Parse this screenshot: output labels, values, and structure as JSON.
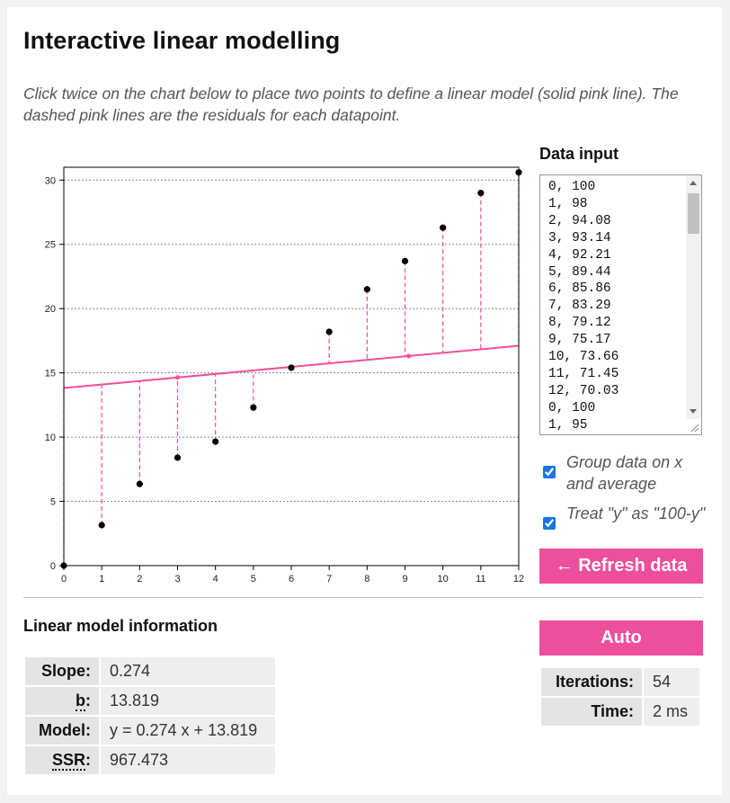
{
  "header": {
    "title": "Interactive linear modelling",
    "description": "Click twice on the chart below to place two points to define a linear model (solid pink line). The dashed pink lines are the residuals for each datapoint."
  },
  "chart_data": {
    "type": "scatter",
    "xlim": [
      0,
      12
    ],
    "ylim": [
      0,
      31
    ],
    "x_ticks": [
      0,
      1,
      2,
      3,
      4,
      5,
      6,
      7,
      8,
      9,
      10,
      11,
      12
    ],
    "y_ticks": [
      0,
      5,
      10,
      15,
      20,
      25,
      30
    ],
    "grid": "horizontal dashed",
    "points": [
      {
        "x": 0,
        "y": 0
      },
      {
        "x": 1,
        "y": 3.15
      },
      {
        "x": 2,
        "y": 6.35
      },
      {
        "x": 3,
        "y": 8.4
      },
      {
        "x": 4,
        "y": 9.65
      },
      {
        "x": 5,
        "y": 12.3
      },
      {
        "x": 6,
        "y": 15.4
      },
      {
        "x": 7,
        "y": 18.2
      },
      {
        "x": 8,
        "y": 21.5
      },
      {
        "x": 9,
        "y": 23.7
      },
      {
        "x": 10,
        "y": 26.3
      },
      {
        "x": 11,
        "y": 29.0
      },
      {
        "x": 12,
        "y": 30.6
      }
    ],
    "model_line": {
      "slope": 0.274,
      "intercept": 13.819,
      "color": "#ee4f9c"
    },
    "clicked_points": [
      {
        "x": 3,
        "y": 14.64
      },
      {
        "x": 9.1,
        "y": 16.31
      }
    ],
    "residual_color": "#ee4f9c",
    "point_color": "#000000"
  },
  "data_input": {
    "label": "Data input",
    "lines": [
      "0, 100",
      "1, 98",
      "2, 94.08",
      "3, 93.14",
      "4, 92.21",
      "5, 89.44",
      "6, 85.86",
      "7, 83.29",
      "8, 79.12",
      "9, 75.17",
      "10, 73.66",
      "11, 71.45",
      "12, 70.03",
      "0, 100",
      "1, 95"
    ]
  },
  "options": {
    "group_label": "Group data on x and average",
    "group_checked": true,
    "treat_label": "Treat \"y\" as \"100-y\"",
    "treat_checked": true
  },
  "buttons": {
    "refresh": "← Refresh data",
    "auto": "Auto"
  },
  "model_info": {
    "heading": "Linear model information",
    "slope_label": "Slope:",
    "slope_value": "0.274",
    "b_label": "b",
    "b_value": "13.819",
    "model_label": "Model:",
    "model_value": "y = 0.274 x + 13.819",
    "ssr_label": "SSR",
    "ssr_value": "967.473"
  },
  "iterations_info": {
    "iterations_label": "Iterations:",
    "iterations_value": "54",
    "time_label": "Time:",
    "time_value": "2 ms"
  },
  "colors": {
    "accent": "#ee4f9c",
    "background": "#f2f2f2"
  }
}
